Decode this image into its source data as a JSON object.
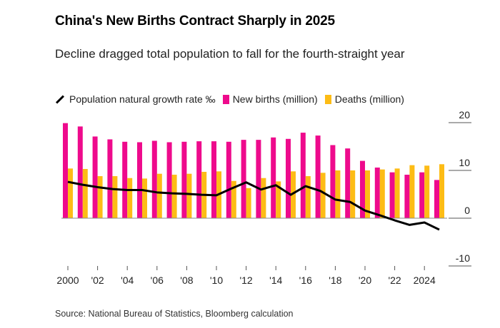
{
  "title": "China's New Births Contract Sharply in 2025",
  "subtitle": "Decline dragged total population to fall for the fourth-straight year",
  "source": "Source: National Bureau of Statistics, Bloomberg calculation",
  "chart_data": {
    "type": "bar",
    "title": "China's New Births Contract Sharply in 2025",
    "x": [
      2000,
      2001,
      2002,
      2003,
      2004,
      2005,
      2006,
      2007,
      2008,
      2009,
      2010,
      2011,
      2012,
      2013,
      2014,
      2015,
      2016,
      2017,
      2018,
      2019,
      2020,
      2021,
      2022,
      2023,
      2024,
      2025
    ],
    "x_tick_labels": [
      "2000",
      "'02",
      "'04",
      "'06",
      "'08",
      "'10",
      "'12",
      "'14",
      "'16",
      "'18",
      "'20",
      "'22",
      "2024"
    ],
    "x_tick_years": [
      2000,
      2002,
      2004,
      2006,
      2008,
      2010,
      2012,
      2014,
      2016,
      2018,
      2020,
      2022,
      2024
    ],
    "y_ticks": [
      20,
      10,
      0,
      -10
    ],
    "y_tick_labels": [
      "20",
      "10",
      "0",
      "-10"
    ],
    "ylim": [
      -10,
      20
    ],
    "y_axis_side": "right",
    "legend_placement": "top",
    "series": [
      {
        "name": "Population natural growth rate ‰",
        "type": "line",
        "color": "#000000",
        "values": [
          7.6,
          7.0,
          6.5,
          6.1,
          5.9,
          5.9,
          5.4,
          5.2,
          5.1,
          4.9,
          4.8,
          6.2,
          7.5,
          6.0,
          6.9,
          4.9,
          6.7,
          5.7,
          3.9,
          3.4,
          1.6,
          0.6,
          -0.45,
          -1.4,
          -0.9,
          -2.4
        ]
      },
      {
        "name": "New births (million)",
        "type": "bar",
        "color": "#ee0a8c",
        "values": [
          19.9,
          19.2,
          17.1,
          16.5,
          16.0,
          15.9,
          16.2,
          15.9,
          16.0,
          16.1,
          16.1,
          16.0,
          16.4,
          16.4,
          16.9,
          16.6,
          17.9,
          17.3,
          15.3,
          14.6,
          12.0,
          10.6,
          9.6,
          9.1,
          9.6,
          8.0
        ]
      },
      {
        "name": "Deaths (million)",
        "type": "bar",
        "color": "#fdbc15",
        "values": [
          10.4,
          10.3,
          8.8,
          8.8,
          8.4,
          8.3,
          9.3,
          9.1,
          9.3,
          9.7,
          9.8,
          7.8,
          6.3,
          8.4,
          7.7,
          9.8,
          8.8,
          9.5,
          10.0,
          10.0,
          10.0,
          10.2,
          10.4,
          11.1,
          11.0,
          11.3
        ]
      }
    ]
  }
}
